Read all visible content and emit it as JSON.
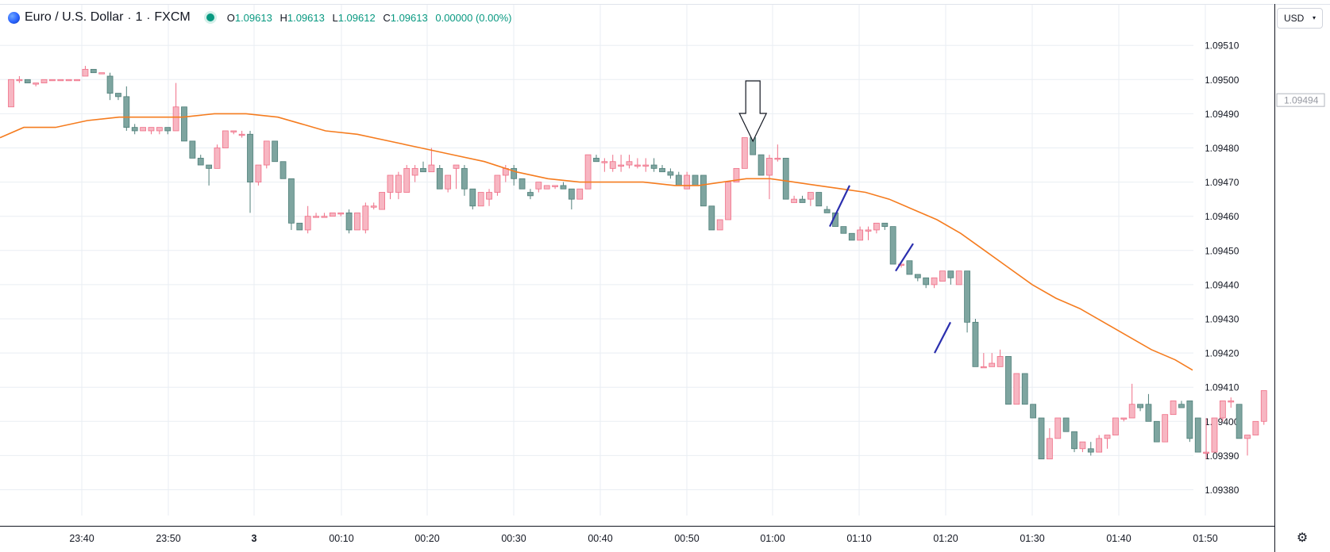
{
  "header": {
    "symbol_title": "Euro / U.S. Dollar",
    "interval": "1",
    "exchange": "FXCM",
    "ohlc": [
      {
        "key": "O",
        "value": "1.09613"
      },
      {
        "key": "H",
        "value": "1.09613"
      },
      {
        "key": "L",
        "value": "1.09612"
      },
      {
        "key": "C",
        "value": "1.09613"
      }
    ],
    "change": "0.00000 (0.00%)"
  },
  "currency_button": {
    "label": "USD"
  },
  "price_marker": "1.09494",
  "colors": {
    "up": "#f7b6c2",
    "up_border": "#ef6f87",
    "down": "#7ea5a0",
    "down_border": "#4f7f79",
    "ma_line": "#f57c1f",
    "trendlines": "#2b2fae",
    "grid": "#e9eef3"
  },
  "icons": {
    "settings": "gear-icon",
    "logo": "globe-icon",
    "chevron": "chevron-down-icon",
    "arrow": "down-arrow-annotation"
  },
  "chart_data": {
    "type": "candlestick",
    "y_ticks": [
      "1.09380",
      "1.09390",
      "1.09400",
      "1.09410",
      "1.09420",
      "1.09430",
      "1.09440",
      "1.09450",
      "1.09460",
      "1.09470",
      "1.09480",
      "1.09490",
      "1.09500",
      "1.09510"
    ],
    "x_ticks": [
      "23:40",
      "23:50",
      "3",
      "00:10",
      "00:20",
      "00:30",
      "00:40",
      "00:50",
      "01:00",
      "01:10",
      "01:20",
      "01:30",
      "01:40",
      "01:50"
    ],
    "ylim": [
      1.09378,
      1.09519
    ],
    "candles": [
      [
        1.09492,
        1.095,
        1.09492,
        1.095
      ],
      [
        1.095,
        1.09501,
        1.09499,
        1.095
      ],
      [
        1.095,
        1.095,
        1.09499,
        1.09499
      ],
      [
        1.09499,
        1.09499,
        1.09498,
        1.09499
      ],
      [
        1.09499,
        1.095,
        1.09499,
        1.095
      ],
      [
        1.095,
        1.095,
        1.095,
        1.095
      ],
      [
        1.095,
        1.095,
        1.095,
        1.095
      ],
      [
        1.095,
        1.095,
        1.095,
        1.095
      ],
      [
        1.095,
        1.095,
        1.095,
        1.095
      ],
      [
        1.09501,
        1.09504,
        1.09501,
        1.09503
      ],
      [
        1.09503,
        1.09503,
        1.09502,
        1.09502
      ],
      [
        1.09502,
        1.09502,
        1.09502,
        1.09502
      ],
      [
        1.09501,
        1.09502,
        1.09494,
        1.09496
      ],
      [
        1.09496,
        1.09496,
        1.09494,
        1.09495
      ],
      [
        1.09495,
        1.09498,
        1.09485,
        1.09486
      ],
      [
        1.09486,
        1.09487,
        1.09484,
        1.09485
      ],
      [
        1.09485,
        1.09486,
        1.09485,
        1.09486
      ],
      [
        1.09485,
        1.09486,
        1.09484,
        1.09486
      ],
      [
        1.09485,
        1.09486,
        1.09484,
        1.09486
      ],
      [
        1.09486,
        1.09486,
        1.09484,
        1.09485
      ],
      [
        1.09485,
        1.09499,
        1.09485,
        1.09492
      ],
      [
        1.09492,
        1.09492,
        1.09482,
        1.09482
      ],
      [
        1.09482,
        1.09482,
        1.09477,
        1.09477
      ],
      [
        1.09477,
        1.09478,
        1.09475,
        1.09475
      ],
      [
        1.09475,
        1.09475,
        1.09469,
        1.09474
      ],
      [
        1.09474,
        1.09481,
        1.09474,
        1.0948
      ],
      [
        1.0948,
        1.09485,
        1.0948,
        1.09485
      ],
      [
        1.09485,
        1.09485,
        1.09484,
        1.09485
      ],
      [
        1.09484,
        1.09485,
        1.09483,
        1.09484
      ],
      [
        1.09484,
        1.09485,
        1.09461,
        1.0947
      ],
      [
        1.0947,
        1.09475,
        1.09469,
        1.09475
      ],
      [
        1.09475,
        1.09482,
        1.09474,
        1.09482
      ],
      [
        1.09482,
        1.09482,
        1.09476,
        1.09476
      ],
      [
        1.09476,
        1.09476,
        1.09471,
        1.09471
      ],
      [
        1.09471,
        1.09471,
        1.09456,
        1.09458
      ],
      [
        1.09458,
        1.09458,
        1.09456,
        1.09456
      ],
      [
        1.09456,
        1.09463,
        1.09455,
        1.0946
      ],
      [
        1.0946,
        1.09461,
        1.0946,
        1.0946
      ],
      [
        1.0946,
        1.09461,
        1.0946,
        1.0946
      ],
      [
        1.0946,
        1.09461,
        1.0946,
        1.09461
      ],
      [
        1.09461,
        1.09461,
        1.0946,
        1.09461
      ],
      [
        1.09461,
        1.09462,
        1.09455,
        1.09456
      ],
      [
        1.09456,
        1.09461,
        1.09456,
        1.09461
      ],
      [
        1.09456,
        1.09464,
        1.09455,
        1.09463
      ],
      [
        1.09463,
        1.09464,
        1.09462,
        1.09463
      ],
      [
        1.09462,
        1.09467,
        1.09462,
        1.09467
      ],
      [
        1.09467,
        1.09472,
        1.09465,
        1.09472
      ],
      [
        1.09467,
        1.09473,
        1.09465,
        1.09472
      ],
      [
        1.09467,
        1.09475,
        1.09467,
        1.09474
      ],
      [
        1.09472,
        1.09475,
        1.0947,
        1.09474
      ],
      [
        1.09474,
        1.09476,
        1.09473,
        1.09473
      ],
      [
        1.09473,
        1.0948,
        1.09473,
        1.09475
      ],
      [
        1.09474,
        1.09475,
        1.09468,
        1.09468
      ],
      [
        1.09468,
        1.09472,
        1.09467,
        1.09472
      ],
      [
        1.09474,
        1.09475,
        1.09468,
        1.09475
      ],
      [
        1.09474,
        1.09475,
        1.09466,
        1.09468
      ],
      [
        1.09468,
        1.09468,
        1.09462,
        1.09463
      ],
      [
        1.09463,
        1.09467,
        1.09463,
        1.09467
      ],
      [
        1.09465,
        1.09468,
        1.09463,
        1.09467
      ],
      [
        1.09467,
        1.09472,
        1.09466,
        1.09472
      ],
      [
        1.09472,
        1.09475,
        1.0947,
        1.09474
      ],
      [
        1.09474,
        1.09475,
        1.09469,
        1.09471
      ],
      [
        1.09471,
        1.09471,
        1.09468,
        1.09468
      ],
      [
        1.09467,
        1.09468,
        1.09465,
        1.09466
      ],
      [
        1.09468,
        1.0947,
        1.09467,
        1.0947
      ],
      [
        1.09468,
        1.09469,
        1.09468,
        1.09469
      ],
      [
        1.09469,
        1.09469,
        1.09468,
        1.09469
      ],
      [
        1.09469,
        1.0947,
        1.09468,
        1.09468
      ],
      [
        1.09468,
        1.09468,
        1.09462,
        1.09465
      ],
      [
        1.09465,
        1.09468,
        1.09465,
        1.09468
      ],
      [
        1.09468,
        1.09478,
        1.09468,
        1.09478
      ],
      [
        1.09477,
        1.09478,
        1.09476,
        1.09476
      ],
      [
        1.09476,
        1.09477,
        1.09473,
        1.09476
      ],
      [
        1.09474,
        1.09478,
        1.09473,
        1.09476
      ],
      [
        1.09475,
        1.09478,
        1.09473,
        1.09475
      ],
      [
        1.09475,
        1.09478,
        1.09474,
        1.09476
      ],
      [
        1.09475,
        1.09477,
        1.09474,
        1.09475
      ],
      [
        1.09475,
        1.09477,
        1.09473,
        1.09475
      ],
      [
        1.09475,
        1.09477,
        1.09473,
        1.09474
      ],
      [
        1.09474,
        1.09475,
        1.09473,
        1.09473
      ],
      [
        1.09473,
        1.09474,
        1.09471,
        1.09472
      ],
      [
        1.09472,
        1.09473,
        1.09469,
        1.09469
      ],
      [
        1.09468,
        1.09473,
        1.09468,
        1.09472
      ],
      [
        1.09472,
        1.09472,
        1.09469,
        1.09469
      ],
      [
        1.09472,
        1.09472,
        1.09463,
        1.09463
      ],
      [
        1.09463,
        1.09463,
        1.09456,
        1.09456
      ],
      [
        1.09456,
        1.09459,
        1.09456,
        1.09459
      ],
      [
        1.09459,
        1.0947,
        1.09459,
        1.0947
      ],
      [
        1.0947,
        1.09474,
        1.0947,
        1.09474
      ],
      [
        1.09474,
        1.09483,
        1.09474,
        1.09483
      ],
      [
        1.09483,
        1.09483,
        1.09478,
        1.09478
      ],
      [
        1.09478,
        1.09478,
        1.09472,
        1.09472
      ],
      [
        1.09472,
        1.09478,
        1.09465,
        1.09477
      ],
      [
        1.09477,
        1.09481,
        1.09476,
        1.09477
      ],
      [
        1.09477,
        1.09477,
        1.09465,
        1.09465
      ],
      [
        1.09464,
        1.09466,
        1.09464,
        1.09465
      ],
      [
        1.09465,
        1.09466,
        1.09464,
        1.09464
      ],
      [
        1.09465,
        1.09467,
        1.09463,
        1.09467
      ],
      [
        1.09467,
        1.09467,
        1.09463,
        1.09463
      ],
      [
        1.09462,
        1.09463,
        1.09461,
        1.09461
      ],
      [
        1.09461,
        1.09461,
        1.09457,
        1.09457
      ],
      [
        1.09457,
        1.09457,
        1.09455,
        1.09455
      ],
      [
        1.09455,
        1.09455,
        1.09453,
        1.09453
      ],
      [
        1.09453,
        1.09457,
        1.09453,
        1.09456
      ],
      [
        1.09456,
        1.09457,
        1.09453,
        1.09456
      ],
      [
        1.09456,
        1.09458,
        1.09455,
        1.09458
      ],
      [
        1.09458,
        1.09458,
        1.09456,
        1.09457
      ],
      [
        1.09457,
        1.09457,
        1.09446,
        1.09446
      ],
      [
        1.09446,
        1.09446,
        1.09445,
        1.09446
      ],
      [
        1.09447,
        1.09447,
        1.09443,
        1.09443
      ],
      [
        1.09443,
        1.09443,
        1.09441,
        1.09442
      ],
      [
        1.09442,
        1.09442,
        1.09439,
        1.0944
      ],
      [
        1.0944,
        1.09442,
        1.09439,
        1.09442
      ],
      [
        1.09441,
        1.09444,
        1.09441,
        1.09444
      ],
      [
        1.09444,
        1.09444,
        1.0944,
        1.09442
      ],
      [
        1.0944,
        1.09444,
        1.0944,
        1.09444
      ],
      [
        1.09444,
        1.09444,
        1.09426,
        1.09429
      ],
      [
        1.09429,
        1.0943,
        1.09416,
        1.09416
      ],
      [
        1.09416,
        1.0942,
        1.09416,
        1.09416
      ],
      [
        1.09416,
        1.0942,
        1.09416,
        1.09417
      ],
      [
        1.09416,
        1.09421,
        1.09416,
        1.09419
      ],
      [
        1.09419,
        1.09419,
        1.09405,
        1.09405
      ],
      [
        1.09405,
        1.09414,
        1.09405,
        1.09414
      ],
      [
        1.09414,
        1.09414,
        1.09405,
        1.09405
      ],
      [
        1.09405,
        1.09405,
        1.09401,
        1.09401
      ],
      [
        1.09401,
        1.09401,
        1.09389,
        1.09389
      ],
      [
        1.09389,
        1.09398,
        1.09389,
        1.09395
      ],
      [
        1.09395,
        1.09401,
        1.09395,
        1.09401
      ],
      [
        1.09401,
        1.09401,
        1.09397,
        1.09397
      ],
      [
        1.09397,
        1.09397,
        1.09391,
        1.09392
      ],
      [
        1.09392,
        1.09394,
        1.09391,
        1.09394
      ],
      [
        1.09392,
        1.09394,
        1.0939,
        1.09391
      ],
      [
        1.09391,
        1.09396,
        1.09391,
        1.09395
      ],
      [
        1.09395,
        1.09396,
        1.09392,
        1.09396
      ],
      [
        1.09396,
        1.09401,
        1.09396,
        1.09401
      ],
      [
        1.09401,
        1.09401,
        1.094,
        1.09401
      ],
      [
        1.09401,
        1.09411,
        1.09401,
        1.09405
      ],
      [
        1.09405,
        1.09405,
        1.09403,
        1.09404
      ],
      [
        1.09405,
        1.09408,
        1.094,
        1.094
      ],
      [
        1.094,
        1.094,
        1.09394,
        1.09394
      ],
      [
        1.09394,
        1.09402,
        1.09394,
        1.09402
      ],
      [
        1.09402,
        1.09406,
        1.09402,
        1.09406
      ],
      [
        1.09405,
        1.09406,
        1.09404,
        1.09404
      ],
      [
        1.09406,
        1.09406,
        1.09394,
        1.09395
      ],
      [
        1.09401,
        1.09401,
        1.09391,
        1.09391
      ],
      [
        1.09391,
        1.09401,
        1.09389,
        1.09391
      ],
      [
        1.09391,
        1.09401,
        1.09391,
        1.09401
      ],
      [
        1.09401,
        1.09406,
        1.094,
        1.09406
      ],
      [
        1.09406,
        1.09407,
        1.09404,
        1.09406
      ],
      [
        1.09405,
        1.09405,
        1.09395,
        1.09395
      ],
      [
        1.09395,
        1.09396,
        1.0939,
        1.09396
      ],
      [
        1.09396,
        1.094,
        1.09396,
        1.094
      ],
      [
        1.094,
        1.09409,
        1.09399,
        1.09409
      ]
    ],
    "moving_average": [
      [
        0,
        1.09483
      ],
      [
        30,
        1.09486
      ],
      [
        70,
        1.09486
      ],
      [
        110,
        1.09488
      ],
      [
        150,
        1.09489
      ],
      [
        190,
        1.09489
      ],
      [
        230,
        1.09489
      ],
      [
        270,
        1.0949
      ],
      [
        310,
        1.0949
      ],
      [
        350,
        1.09489
      ],
      [
        380,
        1.09487
      ],
      [
        410,
        1.09485
      ],
      [
        450,
        1.09484
      ],
      [
        490,
        1.09482
      ],
      [
        530,
        1.0948
      ],
      [
        570,
        1.09478
      ],
      [
        610,
        1.09476
      ],
      [
        650,
        1.09473
      ],
      [
        690,
        1.09471
      ],
      [
        730,
        1.0947
      ],
      [
        770,
        1.0947
      ],
      [
        810,
        1.0947
      ],
      [
        850,
        1.09469
      ],
      [
        880,
        1.09469
      ],
      [
        910,
        1.0947
      ],
      [
        940,
        1.09471
      ],
      [
        970,
        1.09471
      ],
      [
        1000,
        1.0947
      ],
      [
        1030,
        1.09469
      ],
      [
        1060,
        1.09468
      ],
      [
        1090,
        1.09467
      ],
      [
        1120,
        1.09465
      ],
      [
        1150,
        1.09462
      ],
      [
        1180,
        1.09459
      ],
      [
        1210,
        1.09455
      ],
      [
        1240,
        1.0945
      ],
      [
        1270,
        1.09445
      ],
      [
        1300,
        1.0944
      ],
      [
        1330,
        1.09436
      ],
      [
        1360,
        1.09433
      ],
      [
        1390,
        1.09429
      ],
      [
        1420,
        1.09425
      ],
      [
        1450,
        1.09421
      ],
      [
        1480,
        1.09418
      ],
      [
        1502,
        1.09415
      ]
    ],
    "annotations": {
      "down_arrow_at_candle": 90,
      "trendlines": [
        {
          "from": [
            1.09457,
            1045
          ],
          "to": [
            1.09469,
            1070
          ]
        },
        {
          "from": [
            1.09444,
            1128
          ],
          "to": [
            1.09452,
            1150
          ]
        },
        {
          "from": [
            1.0942,
            1177
          ],
          "to": [
            1.09429,
            1197
          ]
        }
      ]
    }
  }
}
